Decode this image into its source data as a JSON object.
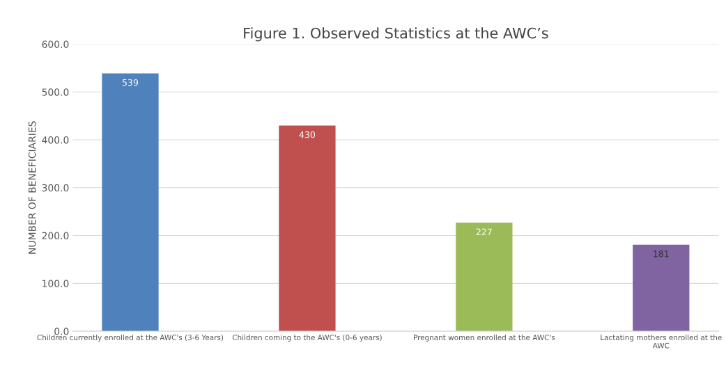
{
  "chart_data": {
    "type": "bar",
    "title": "Figure 1. Observed Statistics at the AWC’s",
    "ylabel": "NUMBER OF BENEFICIARIES",
    "categories": [
      "Children currently enrolled at the AWC's (3-6 Years)",
      "Children coming to the AWC's (0-6 years)",
      "Pregnant women enrolled at the AWC's",
      "Lactating mothers enrolled at the AWC"
    ],
    "values": [
      539,
      430,
      227,
      181
    ],
    "colors": [
      "#4f81bd",
      "#c0504d",
      "#9bbb59",
      "#8064a2"
    ],
    "data_labels": true,
    "ylim": [
      0,
      600
    ],
    "yticks": [
      {
        "value": 0,
        "label": "0.0"
      },
      {
        "value": 100,
        "label": "100.0"
      },
      {
        "value": 200,
        "label": "200.0"
      },
      {
        "value": 300,
        "label": "300.0"
      },
      {
        "value": 400,
        "label": "400.0"
      },
      {
        "value": 500,
        "label": "500.0"
      },
      {
        "value": 600,
        "label": "600.0"
      }
    ],
    "grid": "y"
  }
}
